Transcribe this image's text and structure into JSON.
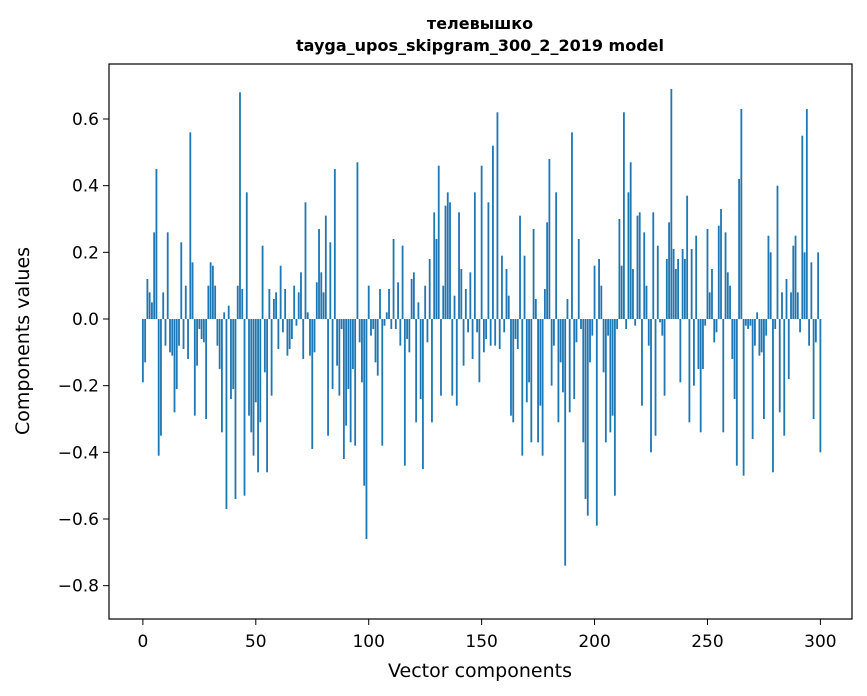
{
  "chart_data": {
    "type": "bar",
    "title": "телевышко",
    "subtitle": "tayga_upos_skipgram_300_2_2019 model",
    "xlabel": "Vector components",
    "ylabel": "Components values",
    "xlim": [
      -15,
      314
    ],
    "ylim": [
      -0.9,
      0.765
    ],
    "xticks": [
      0,
      50,
      100,
      150,
      200,
      250,
      300
    ],
    "xtick_labels": [
      "0",
      "50",
      "100",
      "150",
      "200",
      "250",
      "300"
    ],
    "yticks": [
      -0.8,
      -0.6,
      -0.4,
      -0.2,
      0.0,
      0.2,
      0.4,
      0.6
    ],
    "ytick_labels": [
      "−0.8",
      "−0.6",
      "−0.4",
      "−0.2",
      "0.0",
      "0.2",
      "0.4",
      "0.6"
    ],
    "grid": false,
    "color": "#1f77b4",
    "values": [
      -0.19,
      -0.13,
      0.12,
      0.08,
      0.05,
      0.26,
      0.45,
      -0.41,
      -0.35,
      0.08,
      -0.08,
      0.26,
      -0.1,
      -0.11,
      -0.28,
      -0.21,
      -0.08,
      0.23,
      -0.09,
      0.1,
      -0.12,
      0.56,
      0.17,
      -0.29,
      -0.14,
      -0.03,
      -0.06,
      -0.07,
      -0.3,
      0.1,
      0.17,
      0.16,
      0.1,
      -0.08,
      -0.15,
      -0.34,
      0.02,
      -0.57,
      0.04,
      -0.24,
      -0.21,
      -0.54,
      0.1,
      0.68,
      0.09,
      -0.53,
      0.38,
      -0.29,
      -0.34,
      -0.41,
      -0.25,
      -0.46,
      -0.31,
      0.22,
      -0.16,
      -0.46,
      0.09,
      -0.23,
      0.06,
      0.08,
      -0.09,
      0.16,
      -0.04,
      0.09,
      -0.11,
      -0.09,
      -0.06,
      0.1,
      -0.02,
      0.08,
      0.14,
      -0.12,
      0.35,
      0.02,
      -0.11,
      -0.39,
      -0.1,
      0.11,
      0.27,
      0.14,
      0.08,
      0.31,
      -0.35,
      0.23,
      -0.21,
      0.45,
      -0.14,
      -0.23,
      -0.03,
      -0.42,
      -0.32,
      -0.21,
      -0.37,
      -0.15,
      -0.38,
      0.47,
      -0.07,
      -0.19,
      -0.5,
      -0.66,
      0.1,
      -0.05,
      -0.03,
      -0.13,
      -0.17,
      0.09,
      -0.38,
      -0.02,
      0.02,
      0.09,
      -0.03,
      0.24,
      -0.03,
      0.11,
      -0.08,
      0.22,
      -0.44,
      -0.06,
      -0.1,
      0.12,
      0.14,
      -0.31,
      0.05,
      -0.24,
      -0.45,
      0.1,
      -0.07,
      0.18,
      -0.31,
      0.32,
      0.24,
      0.46,
      -0.23,
      0.1,
      0.34,
      0.38,
      0.35,
      -0.23,
      0.07,
      -0.26,
      0.32,
      0.15,
      -0.14,
      0.09,
      -0.04,
      0.14,
      -0.12,
      0.38,
      -0.04,
      -0.19,
      0.46,
      -0.1,
      -0.06,
      0.35,
      -0.08,
      0.52,
      -0.08,
      0.62,
      -0.09,
      0.19,
      -0.04,
      0.15,
      0.07,
      -0.29,
      -0.31,
      -0.06,
      -0.09,
      0.31,
      -0.41,
      0.19,
      -0.25,
      -0.19,
      -0.37,
      0.27,
      0.06,
      -0.37,
      -0.26,
      -0.41,
      0.09,
      0.29,
      0.48,
      -0.2,
      -0.08,
      0.38,
      -0.31,
      -0.13,
      -0.22,
      -0.74,
      0.06,
      -0.28,
      0.56,
      -0.24,
      -0.07,
      0.24,
      -0.03,
      -0.37,
      -0.54,
      -0.59,
      -0.13,
      -0.05,
      0.16,
      -0.62,
      0.18,
      0.1,
      -0.16,
      -0.37,
      -0.05,
      -0.34,
      -0.29,
      -0.53,
      -0.03,
      0.3,
      0.16,
      0.62,
      -0.03,
      0.38,
      0.47,
      0.15,
      -0.02,
      0.31,
      0.32,
      -0.26,
      0.26,
      0.1,
      -0.08,
      -0.4,
      0.32,
      -0.35,
      0.22,
      -0.01,
      -0.05,
      -0.23,
      0.18,
      0.29,
      0.69,
      0.21,
      0.15,
      0.18,
      -0.19,
      0.21,
      0.18,
      0.37,
      -0.31,
      0.21,
      -0.2,
      0.25,
      -0.15,
      -0.34,
      -0.15,
      -0.02,
      0.27,
      0.08,
      0.15,
      -0.07,
      -0.04,
      0.28,
      0.33,
      -0.34,
      0.26,
      0.14,
      0.1,
      -0.12,
      -0.24,
      -0.44,
      0.42,
      0.63,
      -0.47,
      -0.02,
      -0.03,
      -0.02,
      -0.36,
      -0.08,
      0.02,
      -0.11,
      -0.1,
      -0.3,
      -0.05,
      0.25,
      0.2,
      -0.46,
      -0.03,
      0.4,
      -0.28,
      0.08,
      -0.35,
      0.12,
      -0.18,
      0.08,
      0.22,
      0.25,
      0.08,
      -0.04,
      0.55,
      0.2,
      0.63,
      -0.08,
      0.17,
      -0.3,
      -0.07,
      0.2,
      -0.4
    ]
  }
}
